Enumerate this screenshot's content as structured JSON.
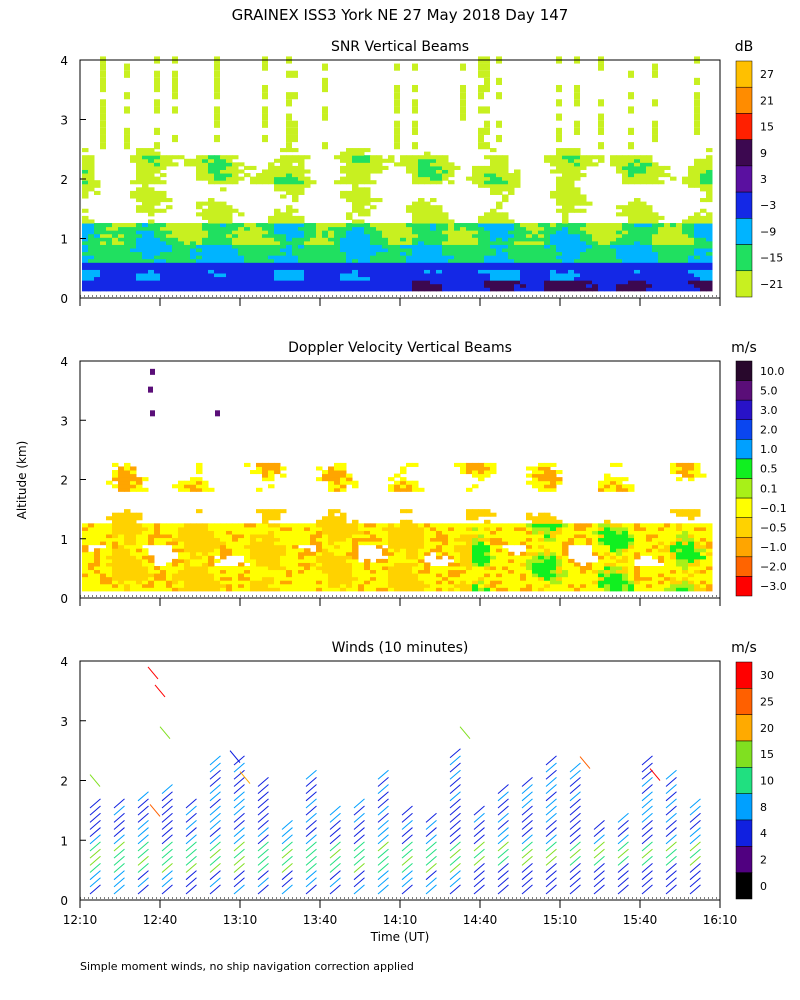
{
  "header": {
    "title": "GRAINEX ISS3 York NE  27 May 2018 Day 147"
  },
  "footer": {
    "note": "Simple moment winds, no ship navigation correction applied"
  },
  "axes": {
    "ylabel": "Altitude (km)",
    "xlabel": "Time (UT)",
    "y_ticks": [
      "0",
      "1",
      "2",
      "3",
      "4"
    ],
    "x_ticks": [
      "12:10",
      "12:40",
      "13:10",
      "13:40",
      "14:10",
      "14:40",
      "15:10",
      "15:40",
      "16:10"
    ]
  },
  "chart_data": [
    {
      "type": "heatmap",
      "title": "SNR Vertical Beams",
      "ylabel": "Altitude (km)",
      "ylim": [
        0,
        4
      ],
      "x": [
        "12:10",
        "16:10"
      ],
      "colorbar": {
        "unit": "dB",
        "labels": [
          "27",
          "21",
          "15",
          "9",
          "3",
          "−3",
          "−9",
          "−15",
          "−21"
        ],
        "colors": [
          "#ffc000",
          "#ff8c00",
          "#ff2000",
          "#3c0850",
          "#5a10a0",
          "#1428e6",
          "#00b4ff",
          "#20e060",
          "#c8f020"
        ]
      }
    },
    {
      "type": "heatmap",
      "title": "Doppler Velocity Vertical Beams",
      "ylabel": "Altitude (km)",
      "ylim": [
        0,
        4
      ],
      "x": [
        "12:10",
        "16:10"
      ],
      "colorbar": {
        "unit": "m/s",
        "labels": [
          "10.0",
          "5.0",
          "3.0",
          "2.0",
          "1.0",
          "0.5",
          "0.1",
          "−0.1",
          "−0.5",
          "−1.0",
          "−2.0",
          "−3.0"
        ],
        "colors": [
          "#28082c",
          "#5a0e78",
          "#2812c8",
          "#0a46f0",
          "#00a0ff",
          "#10f020",
          "#a8f018",
          "#ffff00",
          "#ffd200",
          "#ffa500",
          "#ff6400",
          "#ff0000"
        ]
      }
    },
    {
      "type": "scatter",
      "title": "Winds (10 minutes)",
      "xlabel": "Time (UT)",
      "ylabel": "Altitude (km)",
      "ylim": [
        0,
        4
      ],
      "x": [
        "12:10",
        "12:40",
        "13:10",
        "13:40",
        "14:10",
        "14:40",
        "15:10",
        "15:40",
        "16:10"
      ],
      "colorbar": {
        "unit": "m/s",
        "labels": [
          "30",
          "25",
          "20",
          "15",
          "10",
          "8",
          "4",
          "2",
          "0"
        ],
        "colors": [
          "#ff0000",
          "#ff6000",
          "#ffaa00",
          "#80e020",
          "#20e080",
          "#00a0ff",
          "#1020e0",
          "#500080",
          "#000000"
        ]
      }
    }
  ]
}
